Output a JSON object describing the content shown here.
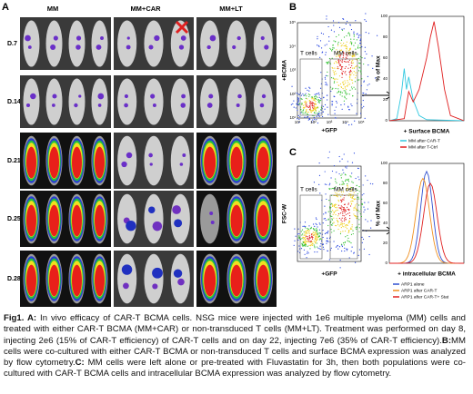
{
  "panel_a": {
    "label": "A",
    "columns": [
      "MM",
      "MM+CAR",
      "MM+LT"
    ],
    "rows": [
      "D.7",
      "D.14",
      "D.21",
      "D.25",
      "D.28"
    ]
  },
  "panel_b": {
    "label": "B",
    "dot_plot": {
      "y_label": "+BCMA",
      "x_label": "+GFP",
      "gates": [
        "T cells",
        "MM cells"
      ],
      "ticks": [
        "10¹",
        "10²",
        "10³",
        "10⁴",
        "10⁵"
      ]
    },
    "histogram": {
      "y_label": "% of Max",
      "x_label": "+ Surface BCMA",
      "yticks": [
        "0",
        "20",
        "40",
        "60",
        "80",
        "100"
      ],
      "legend": [
        "MM after CAR-T",
        "MM after T-Ctrl"
      ]
    }
  },
  "panel_c": {
    "label": "C",
    "dot_plot": {
      "y_label": "FSC-W",
      "x_label": "+GFP",
      "gates": [
        "T cells",
        "MM cells"
      ]
    },
    "histogram": {
      "y_label": "% of Max",
      "x_label": "+ intracellular BCMA",
      "yticks": [
        "0",
        "20",
        "40",
        "60",
        "80",
        "100"
      ],
      "legend": [
        "ARP1 alone",
        "ARP1 after CAR-T",
        "ARP1 after CAR-T+ Stat"
      ]
    }
  },
  "caption": [
    {
      "label": "Fig1. A:",
      "text": " In vivo efficacy of CAR-T BCMA cells. NSG mice were injected with 1e6 multiple myeloma (MM) cells and treated with either CAR-T BCMA (MM+CAR) or non-transduced T cells (MM+LT). Treatment was performed on day 8, injecting 2e6 (15% of CAR-T efficiency) of CAR-T cells and on day 22, injecting 7e6 (35% of CAR-T efficiency)."
    },
    {
      "label": "B:",
      "text": "MM cells were co-cultured with either CAR-T BCMA or non-transduced T cells and surface BCMA expression was analyzed by flow cytometry."
    },
    {
      "label": "C:",
      "text": " MM cells were left alone or pre-treated with Fluvastatin for 3h, then both populations were co-cultured with CAR-T BCMA cells and intracellular BCMA expression was analyzed by flow cytometry."
    }
  ]
}
